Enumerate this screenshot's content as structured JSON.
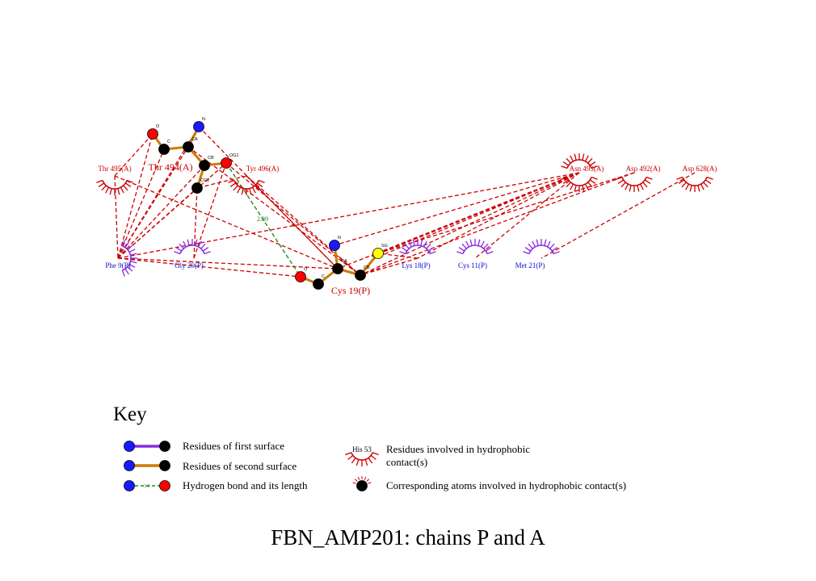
{
  "caption": "FBN_AMP201: chains P and A",
  "colors": {
    "surface1_bond": "#8a2be2",
    "surface2_bond": "#cc7a00",
    "hbond": "#1e8c1e",
    "contact_line": "#cc0000",
    "chainA_label": "#cc0000",
    "chainP_label": "#1010cc",
    "atom_N": "#1a1aff",
    "atom_O": "#ff0000",
    "atom_C": "#000000",
    "atom_S": "#ffff00"
  },
  "ligands": [
    {
      "name": "Thr 494(A)",
      "atoms": {
        "O": "O",
        "C": "C",
        "CA": "CA",
        "N": "N",
        "CB": "CB",
        "OG1": "OG1",
        "CG2": "CG2"
      }
    },
    {
      "name": "Cys 19(P)",
      "atoms": {
        "O": "O",
        "C": "C",
        "CA": "CA",
        "N": "N",
        "CB": "CB",
        "SG": "SG"
      }
    }
  ],
  "hydrogen_bond": {
    "from": "Thr 494(A) OG1",
    "to": "Cys 19(P) O",
    "length": "2.89"
  },
  "hydrophobic_residues": [
    {
      "name": "Thr 495(A)",
      "chain": "A"
    },
    {
      "name": "Tyr 496(A)",
      "chain": "A"
    },
    {
      "name": "Asn 493(A)",
      "chain": "A"
    },
    {
      "name": "Asp 492(A)",
      "chain": "A"
    },
    {
      "name": "Asp 628(A)",
      "chain": "A"
    },
    {
      "name": "Phe 9(P)",
      "chain": "P"
    },
    {
      "name": "Gly 20(P)",
      "chain": "P"
    },
    {
      "name": "Lys 18(P)",
      "chain": "P"
    },
    {
      "name": "Cys 11(P)",
      "chain": "P"
    },
    {
      "name": "Met 21(P)",
      "chain": "P"
    }
  ],
  "key": {
    "title": "Key",
    "items": [
      "Residues of first surface",
      "Residues of second surface",
      "Hydrogen bond and its length",
      "Residues involved in hydrophobic contact(s)",
      "Corresponding atoms involved in hydrophobic contact(s)"
    ],
    "example_residue": "His 53",
    "example_hbond_length": "3.0"
  }
}
